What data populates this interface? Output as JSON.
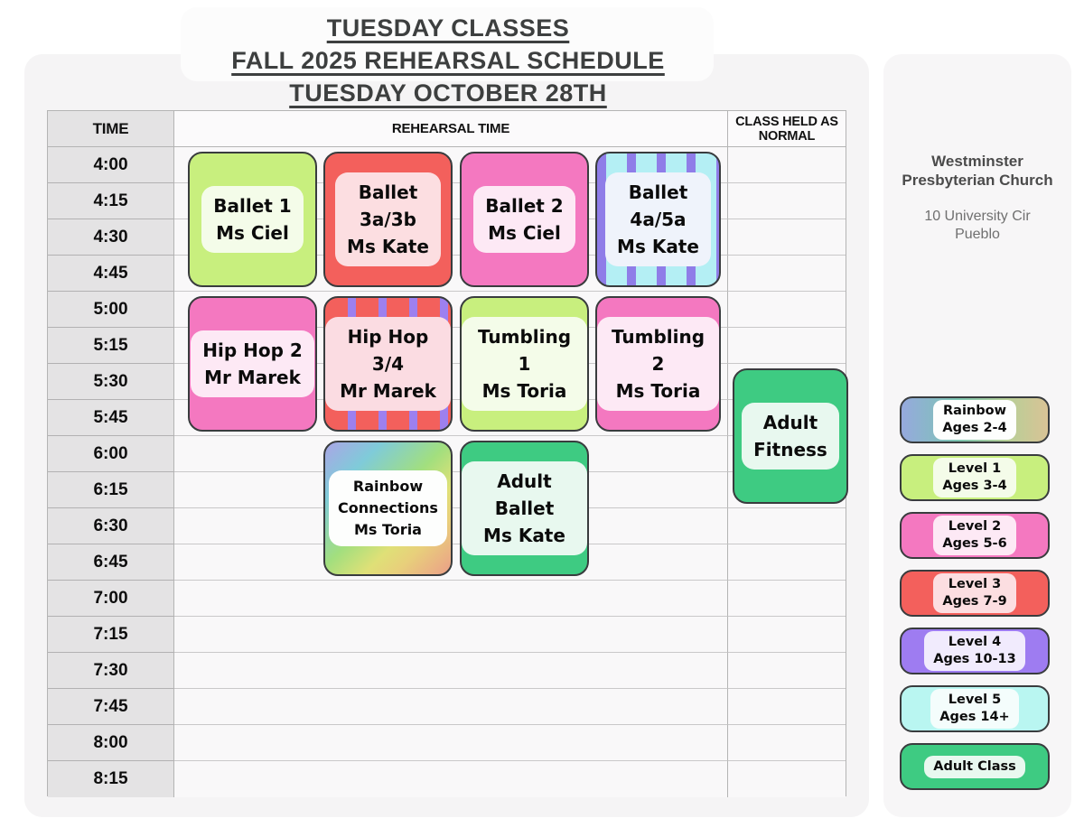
{
  "title": {
    "line1": "TUESDAY CLASSES",
    "line2": "FALL 2025 REHEARSAL SCHEDULE",
    "line3": "TUESDAY OCTOBER 28TH"
  },
  "table": {
    "headers": {
      "time": "TIME",
      "rehearsal": "REHEARSAL TIME",
      "normal": "CLASS HELD AS NORMAL"
    },
    "times": [
      "4:00",
      "4:15",
      "4:30",
      "4:45",
      "5:00",
      "5:15",
      "5:30",
      "5:45",
      "6:00",
      "6:15",
      "6:30",
      "6:45",
      "7:00",
      "7:15",
      "7:30",
      "7:45",
      "8:00",
      "8:15"
    ],
    "blocks": [
      {
        "name": "Ballet 1",
        "lines": [
          "Ballet 1",
          "Ms Ciel"
        ],
        "column": "1",
        "start": "4:00",
        "end": "4:45",
        "style": "level1"
      },
      {
        "name": "Ballet 3a/3b",
        "lines": [
          "Ballet",
          "3a/3b",
          "Ms Kate"
        ],
        "column": "2",
        "start": "4:00",
        "end": "4:45",
        "style": "level3"
      },
      {
        "name": "Ballet 2",
        "lines": [
          "Ballet 2",
          "Ms Ciel"
        ],
        "column": "3",
        "start": "4:00",
        "end": "4:45",
        "style": "level2"
      },
      {
        "name": "Ballet 4a/5a",
        "lines": [
          "Ballet",
          "4a/5a",
          "Ms Kate"
        ],
        "column": "4",
        "start": "4:00",
        "end": "4:45",
        "style": "stripe45"
      },
      {
        "name": "Hip Hop 2",
        "lines": [
          "Hip Hop 2",
          "Mr Marek"
        ],
        "column": "1",
        "start": "5:00",
        "end": "5:45",
        "style": "level2"
      },
      {
        "name": "Hip Hop 3/4",
        "lines": [
          "Hip Hop 3/4",
          "Mr Marek"
        ],
        "column": "2",
        "start": "5:00",
        "end": "5:45",
        "style": "stripe34"
      },
      {
        "name": "Tumbling 1",
        "lines": [
          "Tumbling 1",
          "Ms Toria"
        ],
        "column": "3",
        "start": "5:00",
        "end": "5:45",
        "style": "level1"
      },
      {
        "name": "Tumbling 2",
        "lines": [
          "Tumbling 2",
          "Ms Toria"
        ],
        "column": "4",
        "start": "5:00",
        "end": "5:45",
        "style": "level2"
      },
      {
        "name": "Rainbow Connections",
        "lines": [
          "Rainbow",
          "Connections",
          "Ms Toria"
        ],
        "column": "2",
        "start": "6:00",
        "end": "6:45",
        "style": "rainbow",
        "small_text": true
      },
      {
        "name": "Adult Ballet",
        "lines": [
          "Adult Ballet",
          "Ms Kate"
        ],
        "column": "3",
        "start": "6:00",
        "end": "6:45",
        "style": "adult"
      },
      {
        "name": "Adult Fitness",
        "lines": [
          "Adult",
          "Fitness"
        ],
        "column": "normal",
        "start": "5:30",
        "end": "6:15",
        "style": "adult"
      }
    ]
  },
  "sidebar": {
    "venue_name": "Westminster Presbyterian Church",
    "venue_address": "10 University Cir Pueblo"
  },
  "legend": [
    {
      "lines": [
        "Rainbow",
        "Ages 2-4"
      ],
      "style": "rainbow"
    },
    {
      "lines": [
        "Level 1",
        "Ages 3-4"
      ],
      "style": "level1"
    },
    {
      "lines": [
        "Level 2",
        "Ages 5-6"
      ],
      "style": "level2"
    },
    {
      "lines": [
        "Level 3",
        "Ages 7-9"
      ],
      "style": "level3"
    },
    {
      "lines": [
        "Level 4",
        "Ages 10-13"
      ],
      "style": "level4"
    },
    {
      "lines": [
        "Level 5",
        "Ages 14+"
      ],
      "style": "level5"
    },
    {
      "lines": [
        "Adult Class"
      ],
      "style": "adult"
    }
  ],
  "palettes": {
    "level1": {
      "bg": "#c8ef7e",
      "label": "#f4fce9"
    },
    "level2": {
      "bg": "#f478c0",
      "label": "#fde9f5"
    },
    "level3": {
      "bg": "#f3605c",
      "label": "#fcdee1"
    },
    "level4": {
      "bg": "#9e7cf1",
      "label": "#f1ebfd"
    },
    "level5": {
      "bg": "#b9f6f1",
      "label": "#f4fdfc"
    },
    "adult": {
      "bg": "#3ecb82",
      "label": "#e8f8ef"
    },
    "stripe45": {
      "stripe_a": "#8f7de8",
      "stripe_b": "#b4eff4",
      "label": "#eff3fb"
    },
    "stripe34": {
      "stripe_a": "#f3605c",
      "stripe_b": "#9d80ef",
      "label": "#fbdce2"
    },
    "rainbow": {
      "gradient": [
        "#aba5e6",
        "#7fcbd9",
        "#a2df7e",
        "#dfe077",
        "#eb9f88"
      ],
      "label": "#fdfefd"
    },
    "grid_line": "#b4b4b4",
    "time_cell_bg": "#e4e3e4",
    "title_color": "#3d3f3f"
  }
}
